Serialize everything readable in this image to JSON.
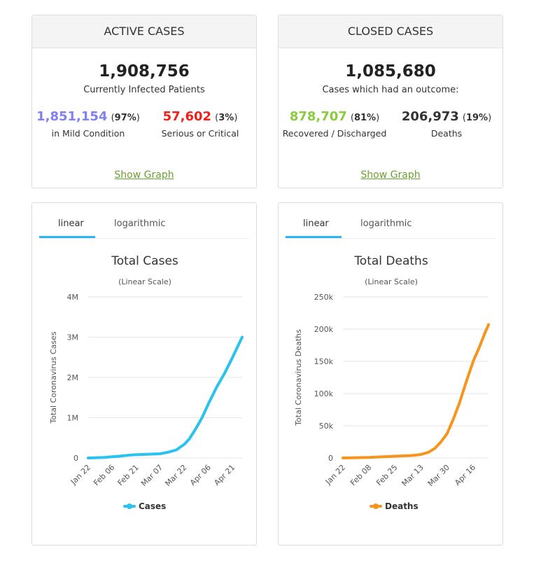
{
  "active": {
    "title": "ACTIVE CASES",
    "total": "1,908,756",
    "total_label": "Currently Infected Patients",
    "mild": {
      "value": "1,851,154",
      "pct": "97%",
      "label": "in Mild Condition",
      "color": "#8080f0"
    },
    "serious": {
      "value": "57,602",
      "pct": "3%",
      "label": "Serious or Critical",
      "color": "#f0201d"
    },
    "link": "Show Graph"
  },
  "closed": {
    "title": "CLOSED CASES",
    "total": "1,085,680",
    "total_label": "Cases which had an outcome:",
    "recovered": {
      "value": "878,707",
      "pct": "81%",
      "label": "Recovered / Discharged",
      "color": "#8acb3e"
    },
    "deaths": {
      "value": "206,973",
      "pct": "19%",
      "label": "Deaths",
      "color": "#333333"
    },
    "link": "Show Graph"
  },
  "tabs": {
    "linear": "linear",
    "log": "logarithmic"
  },
  "chart_data": [
    {
      "type": "line",
      "title": "Total Cases",
      "subtitle": "(Linear Scale)",
      "ylabel": "Total Coronavirus Cases",
      "xlabel": "",
      "ylim": [
        0,
        4000000
      ],
      "yticks": [
        0,
        1000000,
        2000000,
        3000000,
        4000000
      ],
      "ytick_labels": [
        "0",
        "1M",
        "2M",
        "3M",
        "4M"
      ],
      "xticks_day": [
        0,
        15,
        30,
        45,
        60,
        75,
        90
      ],
      "xtick_labels": [
        "Jan 22",
        "Feb 06",
        "Feb 21",
        "Mar 07",
        "Mar 22",
        "Apr 06",
        "Apr 21"
      ],
      "xmax_day": 96,
      "legend": "Cases",
      "legend_position": "bottom",
      "color": "#29c3ef",
      "grid": true,
      "x_day": [
        0,
        10,
        15,
        20,
        25,
        28,
        35,
        45,
        50,
        55,
        60,
        63,
        67,
        71,
        75,
        80,
        85,
        90,
        93,
        96
      ],
      "values": [
        600,
        12000,
        30000,
        45000,
        68000,
        78000,
        88000,
        105000,
        145000,
        200000,
        340000,
        470000,
        720000,
        1000000,
        1350000,
        1750000,
        2100000,
        2500000,
        2750000,
        3000000
      ]
    },
    {
      "type": "line",
      "title": "Total Deaths",
      "subtitle": "(Linear Scale)",
      "ylabel": "Total Coronavirus Deaths",
      "xlabel": "",
      "ylim": [
        0,
        250000
      ],
      "yticks": [
        0,
        50000,
        100000,
        150000,
        200000,
        250000
      ],
      "ytick_labels": [
        "0",
        "50k",
        "100k",
        "150k",
        "200k",
        "250k"
      ],
      "xticks_day": [
        0,
        17,
        34,
        51,
        68,
        85
      ],
      "xtick_labels": [
        "Jan 22",
        "Feb 08",
        "Feb 25",
        "Mar 13",
        "Mar 30",
        "Apr 16"
      ],
      "xmax_day": 95,
      "legend": "Deaths",
      "legend_position": "bottom",
      "color": "#f7941d",
      "grid": true,
      "x_day": [
        0,
        17,
        34,
        45,
        51,
        56,
        60,
        64,
        68,
        72,
        76,
        80,
        85,
        89,
        92,
        95
      ],
      "values": [
        17,
        800,
        2700,
        3800,
        5400,
        9000,
        15000,
        25000,
        38000,
        60000,
        85000,
        115000,
        150000,
        172000,
        190000,
        207000
      ]
    }
  ]
}
